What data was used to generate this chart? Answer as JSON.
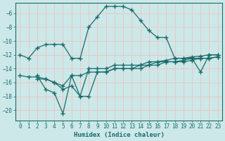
{
  "xlabel": "Humidex (Indice chaleur)",
  "bg_color": "#cce8e8",
  "grid_color": "#e8c8c8",
  "line_color": "#1a6b6b",
  "xlim": [
    -0.5,
    23.5
  ],
  "ylim": [
    -21.5,
    -4.5
  ],
  "yticks": [
    -20,
    -18,
    -16,
    -14,
    -12,
    -10,
    -8,
    -6
  ],
  "xticks": [
    0,
    1,
    2,
    3,
    4,
    5,
    6,
    7,
    8,
    9,
    10,
    11,
    12,
    13,
    14,
    15,
    16,
    17,
    18,
    19,
    20,
    21,
    22,
    23
  ],
  "line1_x": [
    0,
    1,
    2,
    3,
    4,
    5,
    6,
    7,
    8,
    9,
    10,
    11,
    12,
    13,
    14,
    15,
    16,
    17,
    18,
    19,
    20,
    21,
    22,
    23
  ],
  "line1_y": [
    -12,
    -12.5,
    -11,
    -10.5,
    -10.5,
    -10.5,
    -12.5,
    -12.5,
    -8,
    -6.5,
    -5,
    -5,
    -5,
    -5.5,
    -7,
    -8.5,
    -9.5,
    -9.5,
    -12.5,
    -12.5,
    -12.5,
    -14.5,
    -12,
    -12
  ],
  "line2_x": [
    2,
    3,
    4,
    5,
    6,
    7,
    8,
    9,
    10,
    11,
    12,
    13,
    14,
    15,
    16,
    17,
    18,
    19,
    20,
    21,
    22,
    23
  ],
  "line2_y": [
    -15,
    -17,
    -17.5,
    -20.5,
    -15,
    -18,
    -18,
    -14.5,
    -14.5,
    -14,
    -14,
    -14,
    -14,
    -13.5,
    -13.5,
    -13,
    -13,
    -13,
    -12.8,
    -12.5,
    -12.5,
    -12.3
  ],
  "line3_x": [
    2,
    3,
    4,
    5,
    6,
    7,
    8,
    9,
    10,
    11,
    12,
    13,
    14,
    15,
    16,
    17,
    18,
    19,
    20,
    21,
    22,
    23
  ],
  "line3_y": [
    -15.5,
    -15.5,
    -16,
    -17,
    -16.5,
    -18,
    -14,
    -14,
    -14,
    -13.5,
    -13.5,
    -13.5,
    -13.5,
    -13,
    -13,
    -12.8,
    -12.5,
    -12.5,
    -12.3,
    -12.2,
    -12,
    -12
  ],
  "line4_x": [
    0,
    1,
    2,
    3,
    4,
    5,
    6,
    7,
    8,
    9,
    10,
    11,
    12,
    13,
    14,
    15,
    16,
    17,
    18,
    19,
    20,
    21,
    22,
    23
  ],
  "line4_y": [
    -15,
    -15.2,
    -15.2,
    -15.5,
    -16,
    -16.5,
    -15,
    -15,
    -14.5,
    -14.5,
    -14.5,
    -14,
    -14,
    -14,
    -13.5,
    -13.5,
    -13,
    -13,
    -13,
    -12.8,
    -12.5,
    -12.5,
    -12.5,
    -12.3
  ]
}
